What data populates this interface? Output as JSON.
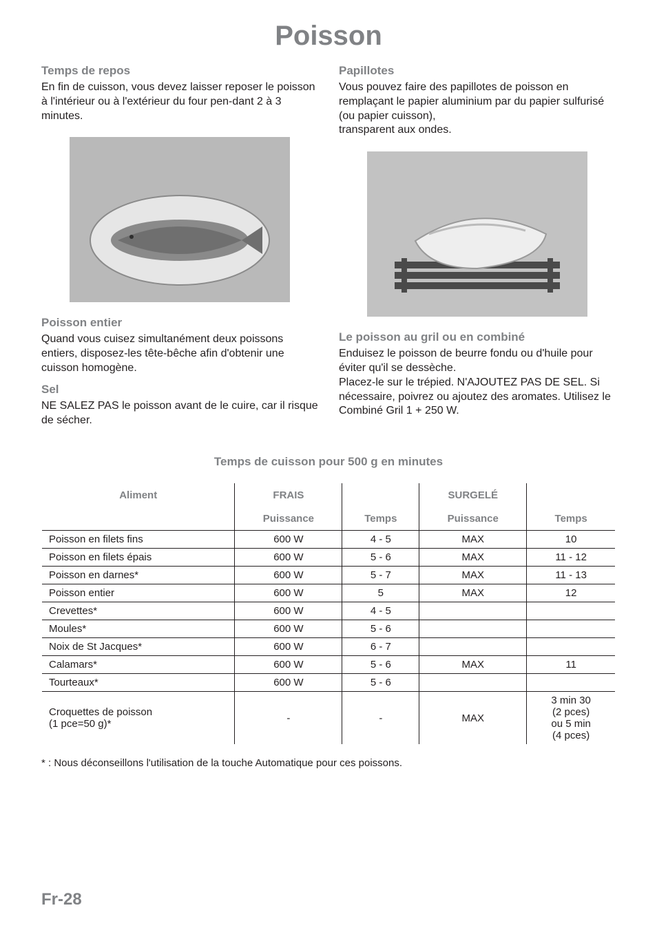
{
  "doc": {
    "title": "Poisson",
    "page_number": "Fr-28"
  },
  "left": {
    "section1_title": "Temps de repos",
    "section1_body": "En fin de cuisson, vous devez laisser reposer le poisson à l'intérieur ou à l'extérieur du four pen-dant 2 à 3 minutes.",
    "section2_title": "Poisson entier",
    "section2_body": "Quand vous cuisez simultanément deux poissons entiers, disposez-les tête-bêche afin d'obtenir une cuisson homogène.",
    "section3_title": "Sel",
    "section3_body": "NE SALEZ PAS le poisson avant de le cuire, car il risque de sécher."
  },
  "right": {
    "section1_title": "Papillotes",
    "section1_body": "Vous pouvez faire des papillotes de poisson en remplaçant le papier aluminium par du papier sulfurisé (ou papier cuisson),\ntransparent aux ondes.",
    "section2_title": "Le poisson au gril ou en combiné",
    "section2_body": "Enduisez le poisson de beurre fondu ou d'huile pour éviter qu'il se dessèche.\nPlacez-le sur le trépied. N'AJOUTEZ PAS DE SEL. Si nécessaire, poivrez ou ajoutez des aromates. Utilisez le Combiné Gril 1 + 250 W."
  },
  "photos": {
    "left_caption": "Whole fish on oval plate",
    "right_caption": "Fish wrapped in parchment on grill rack"
  },
  "table": {
    "title": "Temps de cuisson pour 500 g en minutes",
    "headers": {
      "aliment": "Aliment",
      "frais": "FRAIS",
      "surgele": "SURGELÉ",
      "puissance": "Puissance",
      "temps": "Temps"
    },
    "rows": [
      {
        "aliment": "Poisson en filets fins",
        "fp": "600 W",
        "ft": "4 - 5",
        "sp": "MAX",
        "st": "10"
      },
      {
        "aliment": "Poisson en filets épais",
        "fp": "600 W",
        "ft": "5 - 6",
        "sp": "MAX",
        "st": "11 - 12"
      },
      {
        "aliment": "Poisson en darnes*",
        "fp": "600 W",
        "ft": "5 - 7",
        "sp": "MAX",
        "st": "11 - 13"
      },
      {
        "aliment": "Poisson entier",
        "fp": "600 W",
        "ft": "5",
        "sp": "MAX",
        "st": "12"
      },
      {
        "aliment": "Crevettes*",
        "fp": "600 W",
        "ft": "4 - 5",
        "sp": "",
        "st": ""
      },
      {
        "aliment": "Moules*",
        "fp": "600 W",
        "ft": "5 - 6",
        "sp": "",
        "st": ""
      },
      {
        "aliment": "Noix de St Jacques*",
        "fp": "600 W",
        "ft": "6 - 7",
        "sp": "",
        "st": ""
      },
      {
        "aliment": "Calamars*",
        "fp": "600 W",
        "ft": "5 - 6",
        "sp": "MAX",
        "st": "11"
      },
      {
        "aliment": "Tourteaux*",
        "fp": "600 W",
        "ft": "5 - 6",
        "sp": "",
        "st": ""
      },
      {
        "aliment": "Croquettes de poisson\n(1 pce=50 g)*",
        "fp": "-",
        "ft": "-",
        "sp": "MAX",
        "st": "3 min 30\n(2 pces)\nou 5 min\n(4 pces)"
      }
    ],
    "footnote": "* : Nous déconseillons l'utilisation de la touche Automatique pour ces poissons."
  },
  "style": {
    "title_color": "#808285",
    "body_color": "#231f20",
    "font_family": "Arial, Helvetica, sans-serif"
  }
}
